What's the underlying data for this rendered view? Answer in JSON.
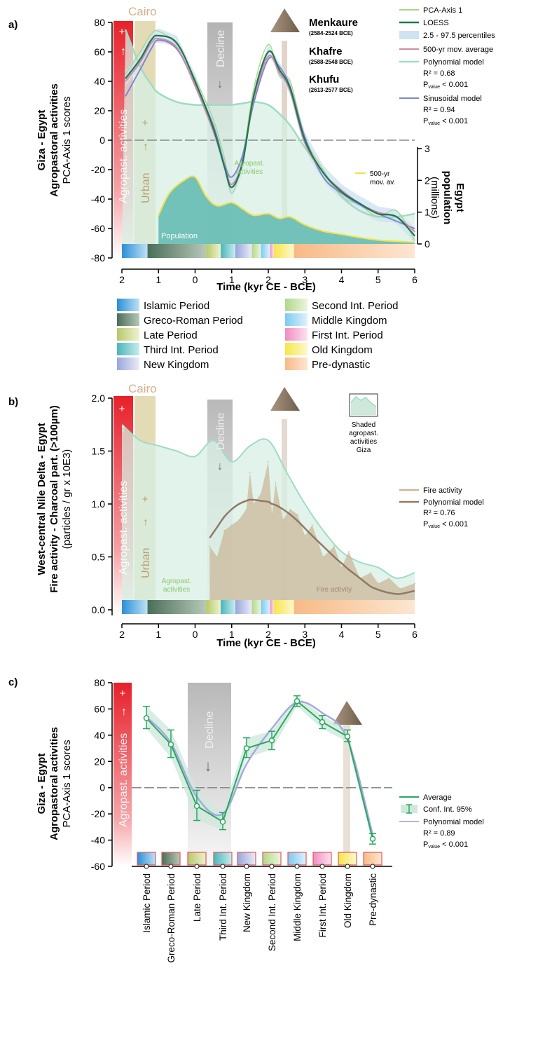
{
  "colors": {
    "agro_red": "#e8202a",
    "urban_tan": "#d8cf9e",
    "decline_grey": "#b5b5b5",
    "pca_green_light": "#a6d48a",
    "loess_dark_green": "#1a7a4a",
    "ci_blue": "#cfe2f2",
    "mov_avg_pink": "#d28aa8",
    "poly_mint": "#9fdcc4",
    "sinus_blue": "#7f86d0",
    "pop_yellow": "#f5e04a",
    "pop_teal_fill": "#5fb8b0",
    "fire_tan": "#c9b89a",
    "fire_poly": "#8f7a66",
    "avg_green": "#2aa860",
    "pyramid": "#8c7a66",
    "cairo_text": "#d2b08c"
  },
  "periods": [
    {
      "label": "Islamic Period",
      "from": "#2a8fd6",
      "to": "#bfe1f6"
    },
    {
      "label": "Greco-Roman Period",
      "from": "#4a6e58",
      "to": "#b7c8b8"
    },
    {
      "label": "Late Period",
      "from": "#b8c86a",
      "to": "#eef2cf"
    },
    {
      "label": "Third Int. Period",
      "from": "#4ab6bc",
      "to": "#c8ecec"
    },
    {
      "label": "New Kingdom",
      "from": "#9aa6dc",
      "to": "#e9ecf8"
    },
    {
      "label": "Second Int. Period",
      "from": "#b2d88a",
      "to": "#eaf5dc"
    },
    {
      "label": "Middle Kingdom",
      "from": "#7ccaf0",
      "to": "#dff2fc"
    },
    {
      "label": "First Int. Period",
      "from": "#f08cc2",
      "to": "#fde2f0"
    },
    {
      "label": "Old Kingdom",
      "from": "#f6e64a",
      "to": "#fdf8cc"
    },
    {
      "label": "Pre-dynastic",
      "from": "#f7ba86",
      "to": "#fde6d2"
    }
  ],
  "panel_a": {
    "letter": "a)",
    "ylabel_lines": [
      "Giza - Egypt",
      "Agropastoral activities",
      "PCA-Axis 1 scores"
    ],
    "y2label_lines": [
      "Egypt",
      "population",
      "(millions)"
    ],
    "xlabel": "Time (kyr CE - BCE)",
    "cairo": "Cairo",
    "agro_band_label": "Agropast. activities",
    "urban_label": "Urban",
    "decline_label": "Decline",
    "plus": "+",
    "population_label": "Population",
    "agro_inset_label": [
      "Agropast.",
      "activities"
    ],
    "pop_legend": [
      "500-yr",
      "mov. av."
    ],
    "pharaohs": [
      {
        "name": "Menkaure",
        "dates": "(2584-2524 BCE)"
      },
      {
        "name": "Khafre",
        "dates": "(2588-2548 BCE)"
      },
      {
        "name": "Khufu",
        "dates": "(2613-2577 BCE)"
      }
    ],
    "legend": [
      "PCA-Axis 1",
      "LOESS",
      "2.5 - 97.5 percentiles",
      "500-yr mov. average",
      "Polynomial model",
      "R² = 0.68",
      "P",
      "value",
      " < 0.001",
      "Sinusoidal model",
      "R² = 0.94",
      "P",
      "value",
      " < 0.001"
    ],
    "yticks": [
      "80",
      "60",
      "40",
      "20",
      "0",
      "-20",
      "-40",
      "-60",
      "-80"
    ],
    "y2ticks": [
      "3",
      "2",
      "1",
      "0"
    ],
    "xticks": [
      "2",
      "1",
      "0",
      "1",
      "2",
      "3",
      "4",
      "5",
      "6"
    ]
  },
  "panel_b": {
    "letter": "b)",
    "ylabel_lines": [
      "West-central Nile Delta - Egypt",
      "Fire activity - Charcoal part. (>100µm)",
      "(particles / gr x 10E3)"
    ],
    "xlabel": "Time (kyr CE - BCE)",
    "cairo": "Cairo",
    "agro_band_label": "Agropast. activities",
    "urban_label": "Urban",
    "decline_label": "Decline",
    "plus": "+",
    "agro_inset_label": [
      "Agropast.",
      "activities"
    ],
    "fire_inset_label": "Fire activity",
    "shaded_legend": [
      "Shaded",
      "agropast.",
      "activities",
      "Giza"
    ],
    "legend": [
      "Fire activity",
      "Polynomial model",
      "R² = 0.76",
      "P",
      "value",
      " < 0.001"
    ],
    "yticks": [
      "2.0",
      "1.5",
      "1.0",
      "0.5",
      "0.0"
    ],
    "xticks": [
      "2",
      "1",
      "0",
      "1",
      "2",
      "3",
      "4",
      "5",
      "6"
    ]
  },
  "panel_c": {
    "letter": "c)",
    "ylabel_lines": [
      "Giza - Egypt",
      "Agropastoral activities",
      "PCA-Axis 1 scores"
    ],
    "agro_band_label": "Agropast. activities",
    "decline_label": "Decline",
    "plus": "+",
    "legend": [
      "Average",
      "Conf. Int. 95%",
      "Polynomial model",
      "R² = 0.89",
      "P",
      "value",
      " < 0.001"
    ],
    "yticks": [
      "80",
      "60",
      "40",
      "20",
      "0",
      "-20",
      "-40",
      "-60"
    ]
  },
  "chart_data": [
    {
      "type": "line",
      "title": "",
      "xlabel": "Time (kyr CE - BCE)",
      "ylabel": "PCA-Axis 1 scores",
      "y2label": "Egypt population (millions)",
      "xlim": [
        -2,
        6
      ],
      "ylim": [
        -80,
        80
      ],
      "y2lim": [
        0,
        3
      ],
      "x": [
        -1.9,
        -1.5,
        -1.2,
        -1.0,
        -0.5,
        0.0,
        0.5,
        0.8,
        1.0,
        1.3,
        1.6,
        2.0,
        2.3,
        2.6,
        3.0,
        3.5,
        4.0,
        4.5,
        5.0,
        5.5,
        6.0
      ],
      "series": [
        {
          "name": "LOESS",
          "values": [
            42,
            55,
            68,
            71,
            66,
            40,
            8,
            -18,
            -32,
            -15,
            30,
            60,
            48,
            35,
            0,
            -22,
            -35,
            -43,
            -50,
            -52,
            -65
          ]
        },
        {
          "name": "500-yr mov. average",
          "values": [
            40,
            53,
            66,
            69,
            63,
            37,
            6,
            -17,
            -30,
            -14,
            28,
            57,
            46,
            33,
            -2,
            -22,
            -34,
            -43,
            -49,
            -52,
            -62
          ]
        },
        {
          "name": "Sinusoidal model",
          "values": [
            30,
            48,
            62,
            68,
            62,
            38,
            10,
            -16,
            -25,
            -10,
            25,
            55,
            50,
            36,
            2,
            -25,
            -36,
            -44,
            -50,
            -55,
            -60
          ]
        },
        {
          "name": "Polynomial model",
          "values": [
            75,
            50,
            38,
            32,
            26,
            24,
            24,
            24,
            24,
            25,
            26,
            24,
            18,
            10,
            -5,
            -22,
            -38,
            -48,
            -52,
            -52,
            -50
          ]
        },
        {
          "name": "PCA-Axis 1",
          "values": [
            45,
            60,
            72,
            74,
            65,
            42,
            14,
            -12,
            -36,
            -12,
            35,
            65,
            44,
            40,
            2,
            -20,
            -38,
            -44,
            -52,
            -48,
            -68
          ]
        }
      ],
      "population": {
        "name": "500-yr mov. av.",
        "x": [
          -1.0,
          -0.7,
          -0.3,
          0.0,
          0.3,
          0.6,
          1.0,
          1.3,
          1.6,
          2.0,
          2.3,
          2.6,
          3.0,
          3.5,
          4.0,
          4.5,
          5.0,
          5.5,
          6.0
        ],
        "values": [
          0.9,
          1.6,
          2.0,
          2.1,
          1.5,
          1.2,
          1.3,
          1.1,
          0.9,
          0.95,
          0.8,
          0.85,
          0.6,
          0.4,
          0.3,
          0.2,
          0.12,
          0.08,
          0.05
        ]
      }
    },
    {
      "type": "area",
      "title": "",
      "xlabel": "Time (kyr CE - BCE)",
      "ylabel": "Fire activity - Charcoal part. (>100µm) (particles / gr x 10E3)",
      "xlim": [
        -2,
        6
      ],
      "ylim": [
        0,
        2.0
      ],
      "fire_x": [
        0.4,
        0.6,
        0.8,
        1.0,
        1.2,
        1.4,
        1.5,
        1.6,
        1.8,
        2.0,
        2.1,
        2.2,
        2.4,
        2.6,
        2.8,
        3.0,
        3.2,
        3.5,
        3.8,
        4.0,
        4.2,
        4.5,
        4.8,
        5.0,
        5.3,
        5.6,
        6.0
      ],
      "series": [
        {
          "name": "Fire activity",
          "values": [
            0.6,
            0.5,
            0.75,
            0.8,
            0.85,
            0.95,
            1.3,
            1.0,
            1.1,
            1.4,
            0.9,
            1.2,
            0.85,
            0.95,
            0.9,
            0.7,
            0.8,
            0.5,
            0.6,
            0.4,
            0.55,
            0.3,
            0.35,
            0.25,
            0.3,
            0.2,
            0.25
          ]
        },
        {
          "name": "Polynomial model",
          "values": [
            0.68,
            0.78,
            0.88,
            0.95,
            1.0,
            1.03,
            1.04,
            1.04,
            1.03,
            1.02,
            1.0,
            0.99,
            0.95,
            0.9,
            0.84,
            0.77,
            0.7,
            0.6,
            0.5,
            0.44,
            0.38,
            0.3,
            0.22,
            0.19,
            0.16,
            0.15,
            0.18
          ]
        }
      ],
      "shaded_agro_x": [
        -2.0,
        -1.5,
        -1.0,
        -0.5,
        0.0,
        0.5,
        1.0,
        1.5,
        2.0,
        2.5,
        3.0,
        3.5,
        4.0,
        4.5,
        5.0,
        5.5,
        6.0
      ],
      "shaded_agro_y": [
        1.75,
        1.6,
        1.55,
        1.5,
        1.45,
        1.6,
        1.4,
        1.55,
        1.6,
        1.3,
        1.0,
        0.75,
        0.55,
        0.45,
        0.4,
        0.3,
        0.35
      ]
    },
    {
      "type": "line",
      "title": "",
      "xlabel": "",
      "ylabel": "PCA-Axis 1 scores",
      "ylim": [
        -60,
        80
      ],
      "categories": [
        "Islamic Period",
        "Greco-Roman Period",
        "Late Period",
        "Third Int. Period",
        "New Kingdom",
        "Second Int. Period",
        "Middle Kingdom",
        "First Int. Period",
        "Old Kingdom",
        "Pre-dynastic"
      ],
      "series": [
        {
          "name": "Average",
          "values": [
            53,
            33,
            -14,
            -26,
            30,
            36,
            66,
            50,
            39,
            -39
          ],
          "ci_low": [
            45,
            23,
            -25,
            -32,
            23,
            29,
            62,
            45,
            35,
            -43
          ],
          "ci_high": [
            62,
            44,
            -2,
            -19,
            38,
            43,
            70,
            55,
            44,
            -35
          ]
        },
        {
          "name": "Polynomial model",
          "values": [
            54,
            34,
            -7,
            -20,
            18,
            45,
            65,
            57,
            37,
            -36
          ]
        }
      ]
    }
  ]
}
